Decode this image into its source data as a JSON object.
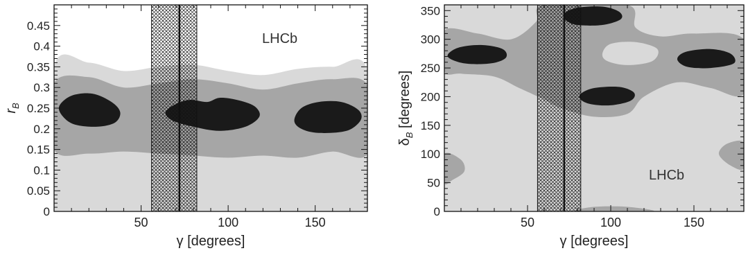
{
  "chart_data": [
    {
      "type": "contour",
      "xlabel": "γ [degrees]",
      "ylabel_main": "r",
      "ylabel_sub": "B",
      "annotation": "LHCb",
      "xlim": [
        0,
        180
      ],
      "ylim": [
        0,
        0.5
      ],
      "xticks": [
        50,
        100,
        150
      ],
      "yticks": [
        0,
        0.05,
        0.1,
        0.15,
        0.2,
        0.25,
        0.3,
        0.35,
        0.4,
        0.45
      ],
      "ytick_labels": [
        "0",
        "0.05",
        "0.1",
        "0.15",
        "0.2",
        "0.25",
        "0.3",
        "0.35",
        "0.4",
        "0.45"
      ],
      "central_value": 72,
      "band": [
        56,
        82
      ],
      "colors": {
        "light": "#d9d9d9",
        "mid": "#a6a6a6",
        "dark": "#1a1a1a"
      },
      "regions": [
        {
          "level": "light",
          "points": [
            [
              0,
              0.35
            ],
            [
              20,
              0.36
            ],
            [
              40,
              0.34
            ],
            [
              60,
              0.35
            ],
            [
              80,
              0.355
            ],
            [
              100,
              0.34
            ],
            [
              120,
              0.33
            ],
            [
              140,
              0.345
            ],
            [
              160,
              0.35
            ],
            [
              180,
              0.34
            ],
            [
              180,
              0
            ],
            [
              0,
              0
            ]
          ]
        },
        {
          "level": "mid",
          "points": [
            [
              0,
              0.31
            ],
            [
              20,
              0.325
            ],
            [
              40,
              0.3
            ],
            [
              60,
              0.31
            ],
            [
              80,
              0.32
            ],
            [
              100,
              0.31
            ],
            [
              120,
              0.295
            ],
            [
              140,
              0.31
            ],
            [
              160,
              0.32
            ],
            [
              180,
              0.305
            ],
            [
              180,
              0.14
            ],
            [
              160,
              0.145
            ],
            [
              140,
              0.13
            ],
            [
              120,
              0.135
            ],
            [
              100,
              0.13
            ],
            [
              80,
              0.135
            ],
            [
              60,
              0.14
            ],
            [
              40,
              0.145
            ],
            [
              20,
              0.14
            ],
            [
              0,
              0.15
            ]
          ]
        },
        {
          "level": "dark",
          "points": [
            [
              3,
              0.255
            ],
            [
              10,
              0.28
            ],
            [
              22,
              0.285
            ],
            [
              33,
              0.265
            ],
            [
              38,
              0.24
            ],
            [
              35,
              0.215
            ],
            [
              25,
              0.205
            ],
            [
              12,
              0.21
            ],
            [
              5,
              0.23
            ]
          ]
        },
        {
          "level": "dark",
          "points": [
            [
              64,
              0.24
            ],
            [
              70,
              0.26
            ],
            [
              78,
              0.27
            ],
            [
              88,
              0.265
            ],
            [
              95,
              0.275
            ],
            [
              105,
              0.27
            ],
            [
              115,
              0.255
            ],
            [
              118,
              0.23
            ],
            [
              110,
              0.205
            ],
            [
              95,
              0.195
            ],
            [
              80,
              0.205
            ],
            [
              68,
              0.22
            ]
          ]
        },
        {
          "level": "dark",
          "points": [
            [
              138,
              0.22
            ],
            [
              142,
              0.25
            ],
            [
              152,
              0.265
            ],
            [
              165,
              0.265
            ],
            [
              175,
              0.245
            ],
            [
              176,
              0.22
            ],
            [
              168,
              0.195
            ],
            [
              152,
              0.19
            ],
            [
              142,
              0.2
            ]
          ]
        }
      ]
    },
    {
      "type": "contour",
      "xlabel": "γ [degrees]",
      "ylabel_main": "δ",
      "ylabel_sub": "B",
      "ylabel_unit": " [degrees]",
      "annotation": "LHCb",
      "xlim": [
        0,
        180
      ],
      "ylim": [
        0,
        360
      ],
      "xticks": [
        50,
        100,
        150
      ],
      "yticks": [
        0,
        50,
        100,
        150,
        200,
        250,
        300,
        350
      ],
      "ytick_labels": [
        "0",
        "50",
        "100",
        "150",
        "200",
        "250",
        "300",
        "350"
      ],
      "central_value": 72,
      "band": [
        56,
        82
      ],
      "colors": {
        "light": "#d9d9d9",
        "mid": "#a6a6a6",
        "dark": "#1a1a1a"
      },
      "regions": [
        {
          "level": "light",
          "points": [
            [
              0,
              0
            ],
            [
              180,
              0
            ],
            [
              180,
              360
            ],
            [
              0,
              360
            ]
          ]
        },
        {
          "level": "mid",
          "points": [
            [
              0,
              315
            ],
            [
              20,
              310
            ],
            [
              40,
              300
            ],
            [
              55,
              330
            ],
            [
              60,
              360
            ],
            [
              110,
              360
            ],
            [
              115,
              320
            ],
            [
              130,
              305
            ],
            [
              150,
              310
            ],
            [
              180,
              300
            ],
            [
              180,
              205
            ],
            [
              160,
              215
            ],
            [
              140,
              225
            ],
            [
              120,
              200
            ],
            [
              110,
              170
            ],
            [
              90,
              165
            ],
            [
              70,
              180
            ],
            [
              60,
              195
            ],
            [
              45,
              215
            ],
            [
              30,
              235
            ],
            [
              10,
              240
            ],
            [
              0,
              245
            ]
          ]
        },
        {
          "level": "light",
          "points": [
            [
              95,
              275
            ],
            [
              100,
              292
            ],
            [
              115,
              295
            ],
            [
              128,
              283
            ],
            [
              125,
              262
            ],
            [
              110,
              255
            ],
            [
              98,
              262
            ]
          ]
        },
        {
          "level": "mid",
          "points": [
            [
              0,
              100
            ],
            [
              10,
              90
            ],
            [
              12,
              70
            ],
            [
              5,
              55
            ],
            [
              0,
              50
            ]
          ]
        },
        {
          "level": "mid",
          "points": [
            [
              180,
              120
            ],
            [
              170,
              118
            ],
            [
              165,
              100
            ],
            [
              172,
              80
            ],
            [
              180,
              75
            ]
          ]
        },
        {
          "level": "mid",
          "points": [
            [
              80,
              0
            ],
            [
              90,
              8
            ],
            [
              110,
              8
            ],
            [
              125,
              0
            ]
          ]
        },
        {
          "level": "dark",
          "points": [
            [
              2,
              270
            ],
            [
              8,
              285
            ],
            [
              22,
              290
            ],
            [
              35,
              283
            ],
            [
              37,
              268
            ],
            [
              28,
              258
            ],
            [
              12,
              258
            ]
          ]
        },
        {
          "level": "dark",
          "points": [
            [
              72,
              345
            ],
            [
              80,
              355
            ],
            [
              95,
              357
            ],
            [
              105,
              348
            ],
            [
              106,
              335
            ],
            [
              95,
              325
            ],
            [
              80,
              325
            ],
            [
              73,
              333
            ]
          ]
        },
        {
          "level": "dark",
          "points": [
            [
              82,
              205
            ],
            [
              90,
              215
            ],
            [
              105,
              217
            ],
            [
              114,
              207
            ],
            [
              112,
              193
            ],
            [
              100,
              185
            ],
            [
              88,
              187
            ],
            [
              82,
              195
            ]
          ]
        },
        {
          "level": "dark",
          "points": [
            [
              140,
              265
            ],
            [
              145,
              278
            ],
            [
              160,
              283
            ],
            [
              172,
              275
            ],
            [
              174,
              258
            ],
            [
              160,
              250
            ],
            [
              146,
              252
            ]
          ]
        }
      ]
    }
  ]
}
